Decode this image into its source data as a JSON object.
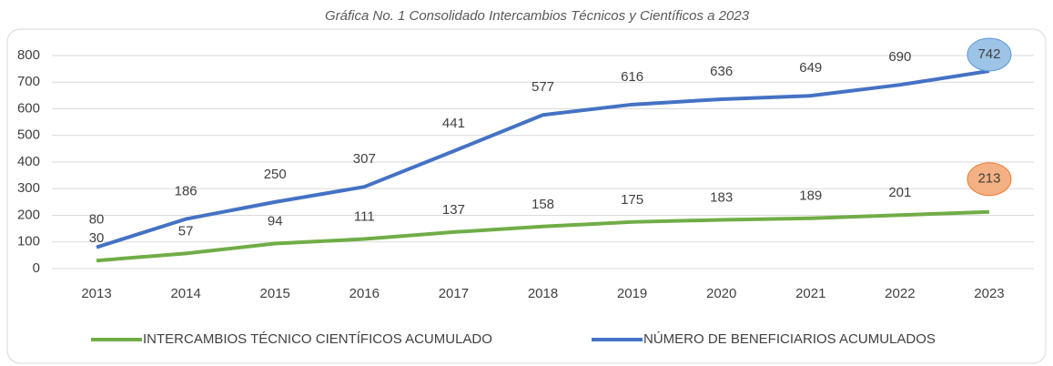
{
  "chart_data": {
    "type": "line",
    "title": "Gráfica No. 1 Consolidado Intercambios Técnicos y Científicos a 2023",
    "categories": [
      "2013",
      "2014",
      "2015",
      "2016",
      "2017",
      "2018",
      "2019",
      "2020",
      "2021",
      "2022",
      "2023"
    ],
    "series": [
      {
        "name": "INTERCAMBIOS TÉCNICO CIENTÍFICOS ACUMULADO",
        "color": "#70ad47",
        "values": [
          30,
          57,
          94,
          111,
          137,
          158,
          175,
          183,
          189,
          201,
          213
        ]
      },
      {
        "name": "NÚMERO DE BENEFICIARIOS ACUMULADOS",
        "color": "#4472c4",
        "values": [
          80,
          186,
          250,
          307,
          441,
          577,
          616,
          636,
          649,
          690,
          742
        ]
      }
    ],
    "ylim": [
      0,
      800
    ],
    "yticks": [
      0,
      100,
      200,
      300,
      400,
      500,
      600,
      700,
      800
    ],
    "grid": true,
    "legend": "bottom"
  }
}
